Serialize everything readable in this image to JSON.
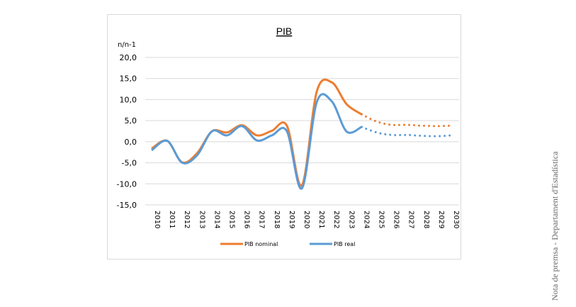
{
  "side_note": "Nota de premsa - Departament d'Estadística",
  "chart_data": {
    "type": "line",
    "title": "PIB",
    "ylabel": "n/n-1",
    "ylim": [
      -15,
      20
    ],
    "yticks": [
      "20,0",
      "15,0",
      "10,0",
      "5,0",
      "0,0",
      "-5,0",
      "-10,0",
      "-15,0"
    ],
    "ytick_values": [
      20,
      15,
      10,
      5,
      0,
      -5,
      -10,
      -15
    ],
    "categories": [
      "2010",
      "2011",
      "2012",
      "2013",
      "2014",
      "2015",
      "2016",
      "2017",
      "2018",
      "2019",
      "2020",
      "2021",
      "2022",
      "2023",
      "2024",
      "2025",
      "2026",
      "2027",
      "2028",
      "2029",
      "2030"
    ],
    "forecast_from": "2024",
    "grid": true,
    "legend_position": "bottom",
    "series": [
      {
        "name": "PIB nominal",
        "color": "#ed7d31",
        "values": [
          -1.5,
          0.2,
          -4.9,
          -2.7,
          2.5,
          2.2,
          3.9,
          1.5,
          2.6,
          3.8,
          -10.4,
          11.9,
          14.1,
          8.9,
          6.5,
          4.8,
          4.0,
          4.0,
          3.8,
          3.7,
          3.8
        ]
      },
      {
        "name": "PIB real",
        "color": "#5b9bd5",
        "values": [
          -1.9,
          0.2,
          -5.0,
          -3.2,
          2.5,
          1.5,
          3.7,
          0.3,
          1.5,
          2.5,
          -11.1,
          9.4,
          9.6,
          2.4,
          3.5,
          2.2,
          1.6,
          1.6,
          1.4,
          1.3,
          1.5
        ]
      }
    ]
  }
}
